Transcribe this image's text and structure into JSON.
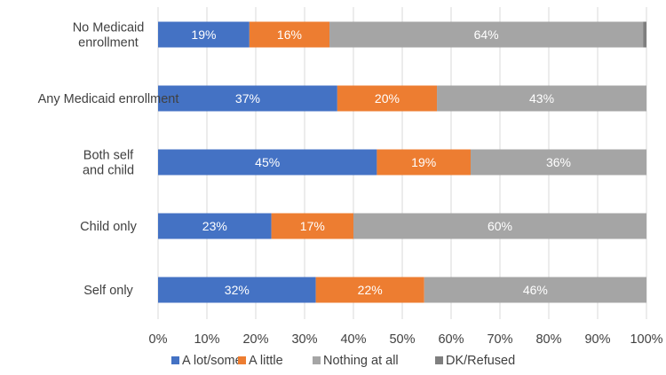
{
  "chart_data": {
    "type": "bar",
    "orientation": "horizontal",
    "stacked": true,
    "categories": [
      "No Medicaid enrollment",
      "Any Medicaid enrollment",
      "Both self and child",
      "Child only",
      "Self only"
    ],
    "category_lines": [
      [
        "No Medicaid",
        "enrollment"
      ],
      [
        "Any Medicaid enrollment"
      ],
      [
        "Both self",
        "and child"
      ],
      [
        "Child only"
      ],
      [
        "Self only"
      ]
    ],
    "series": [
      {
        "name": "A lot/some",
        "color": "#4472c4",
        "values": [
          18.7,
          36.7,
          44.8,
          23.2,
          32.3
        ],
        "labels": [
          "19%",
          "37%",
          "45%",
          "23%",
          "32%"
        ]
      },
      {
        "name": "A little",
        "color": "#ed7d31",
        "values": [
          16.4,
          20.4,
          19.2,
          16.8,
          22.2
        ],
        "labels": [
          "16%",
          "20%",
          "19%",
          "17%",
          "22%"
        ]
      },
      {
        "name": "Nothing at all",
        "color": "#a5a5a5",
        "values": [
          64.2,
          42.9,
          36.0,
          60.0,
          45.5
        ],
        "labels": [
          "64%",
          "43%",
          "36%",
          "60%",
          "46%"
        ]
      },
      {
        "name": "DK/Refused",
        "color": "#7f7f7f",
        "values": [
          0.7,
          0,
          0,
          0,
          0
        ],
        "labels": [
          "",
          "",
          "",
          "",
          ""
        ]
      }
    ],
    "x_ticks": [
      "0%",
      "10%",
      "20%",
      "30%",
      "40%",
      "50%",
      "60%",
      "70%",
      "80%",
      "90%",
      "100%"
    ],
    "xlim": [
      0,
      100
    ],
    "grid": true,
    "legend_position": "bottom",
    "title": "",
    "xlabel": "",
    "ylabel": ""
  }
}
